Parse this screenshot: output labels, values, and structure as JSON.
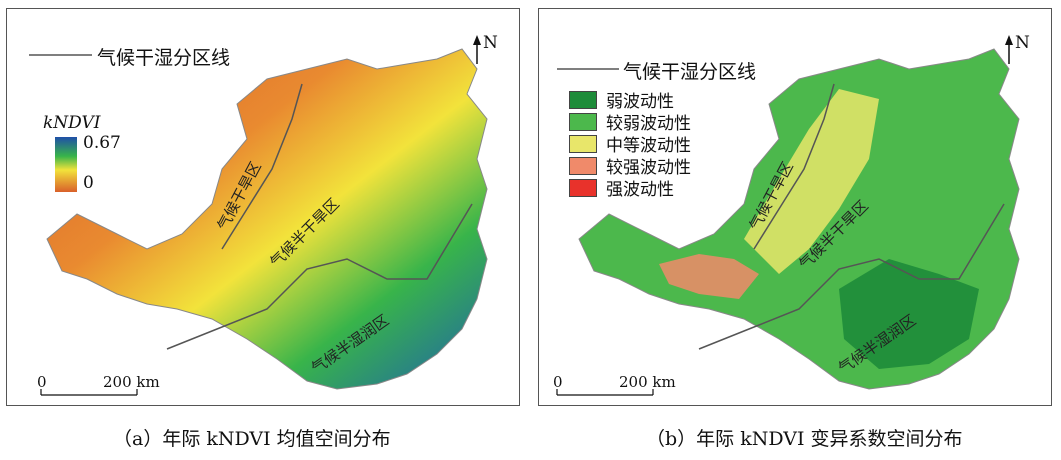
{
  "panel_a": {
    "legend_line_label": "气候干湿分区线",
    "colorbar_title": "kNDVI",
    "colorbar_max": "0.67",
    "colorbar_min": "0",
    "north_label": "N",
    "scale_zero": "0",
    "scale_label": "200 km",
    "zones": [
      "气候干旱区",
      "气候半干旱区",
      "气候半湿润区"
    ],
    "caption": "（a）年际 kNDVI 均值空间分布",
    "colors": {
      "low": "#d9602a",
      "mid": "#f2e33b",
      "green": "#38b44a",
      "high": "#1f5fae"
    }
  },
  "panel_b": {
    "legend_line_label": "气候干湿分区线",
    "north_label": "N",
    "scale_zero": "0",
    "scale_label": "200 km",
    "legend": [
      {
        "label": "弱波动性",
        "color": "#1e8c3a"
      },
      {
        "label": "较弱波动性",
        "color": "#4cb84c"
      },
      {
        "label": "中等波动性",
        "color": "#e8e66a"
      },
      {
        "label": "较强波动性",
        "color": "#f08a6a"
      },
      {
        "label": "强波动性",
        "color": "#e8322b"
      }
    ],
    "zones": [
      "气候干旱区",
      "气候半干旱区",
      "气候半湿润区"
    ],
    "caption": "（b）年际 kNDVI 变异系数空间分布"
  }
}
